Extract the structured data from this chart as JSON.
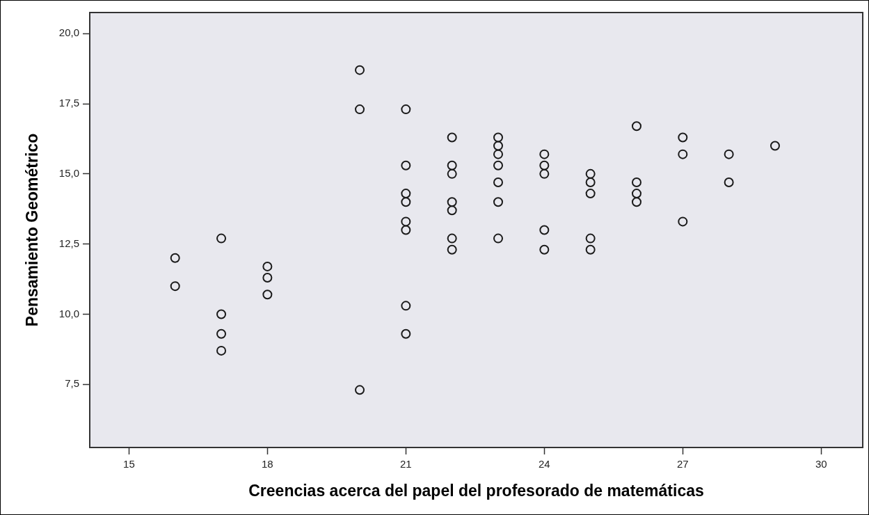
{
  "chart_data": {
    "type": "scatter",
    "xlabel": "Creencias acerca del papel del profesorado de matemáticas",
    "ylabel": "Pensamiento Geométrico",
    "x": [
      16,
      16,
      17,
      17,
      17,
      17,
      18,
      18,
      18,
      20,
      20,
      20,
      21,
      21,
      21,
      21,
      21,
      21,
      21,
      21,
      22,
      22,
      22,
      22,
      22,
      22,
      22,
      23,
      23,
      23,
      23,
      23,
      23,
      23,
      24,
      24,
      24,
      24,
      24,
      25,
      25,
      25,
      25,
      25,
      26,
      26,
      26,
      26,
      27,
      27,
      27,
      28,
      28,
      29
    ],
    "values": [
      12,
      11,
      12.7,
      10,
      9.3,
      8.7,
      11.7,
      11.3,
      10.7,
      18.7,
      17.3,
      7.3,
      17.3,
      15.3,
      14.3,
      14,
      13.3,
      13,
      10.3,
      9.3,
      16.3,
      15.3,
      15,
      14,
      13.7,
      12.7,
      12.3,
      16.3,
      16,
      15.7,
      15.3,
      14.7,
      14,
      12.7,
      15.7,
      15.3,
      15,
      13,
      12.3,
      15,
      14.7,
      14.3,
      12.7,
      12.3,
      16.7,
      14.7,
      14.3,
      14,
      16.3,
      15.7,
      13.3,
      15.7,
      14.7,
      16
    ],
    "color": "#1a1a1a",
    "marker": "circle",
    "xlim": [
      14.15,
      30.9
    ],
    "xticks": [
      15,
      18,
      21,
      24,
      27,
      30
    ],
    "ylim": [
      5.25,
      20.75
    ],
    "yticks": [
      {
        "value": 7.5,
        "label": "7,5"
      },
      {
        "value": 10,
        "label": "10,0"
      },
      {
        "value": 12.5,
        "label": "12,5"
      },
      {
        "value": 15,
        "label": "15,0"
      },
      {
        "value": 17.5,
        "label": "17,5"
      },
      {
        "value": 20,
        "label": "20,0"
      }
    ],
    "grid": false,
    "legend": false
  }
}
